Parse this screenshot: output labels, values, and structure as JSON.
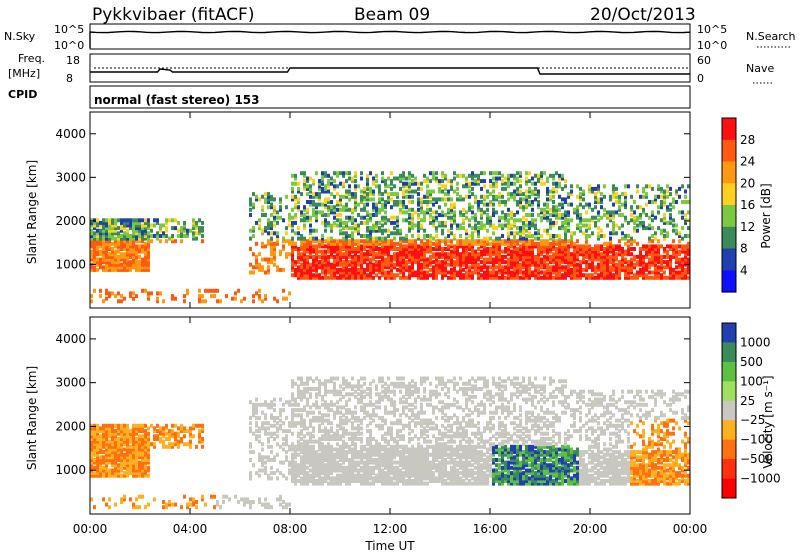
{
  "header": {
    "station": "Pykkvibaer (fitACF)",
    "beam": "Beam 09",
    "date": "20/Oct/2013"
  },
  "status_panels": {
    "nsky_label": "N.Sky",
    "nsky_ticks": [
      "10^5",
      "10^0"
    ],
    "nsearch_label": "N.Search",
    "nsearch_ticks": [
      "10^5",
      "10^0"
    ],
    "freq_label_1": "Freq.",
    "freq_label_2": "[MHz]",
    "freq_ticks": [
      "18",
      "8"
    ],
    "nave_label": "Nave",
    "nave_ticks": [
      "60",
      "0"
    ],
    "cpid_label": "CPID",
    "cpid_value": "normal (fast stereo) 153"
  },
  "chart_data": [
    {
      "type": "heatmap",
      "title": "",
      "ylabel": "Slant Range [km]",
      "xlabel": "",
      "y_ticks": [
        1000,
        2000,
        3000,
        4000
      ],
      "ylim": [
        0,
        4500
      ],
      "x_ticks": [
        "00:00",
        "04:00",
        "08:00",
        "12:00",
        "16:00",
        "20:00",
        "00:00"
      ],
      "xlim_hours": [
        0,
        24
      ],
      "colorbar": {
        "label": "Power [dB]",
        "ticks": [
          "28",
          "24",
          "20",
          "16",
          "12",
          "8",
          "4"
        ],
        "colors": [
          "#ff1010",
          "#ff5a10",
          "#ff9a10",
          "#ffd020",
          "#7cc840",
          "#3a8a5a",
          "#2040b0",
          "#1010ff"
        ]
      }
    },
    {
      "type": "heatmap",
      "title": "",
      "ylabel": "Slant Range [km]",
      "xlabel": "Time UT",
      "y_ticks": [
        1000,
        2000,
        3000,
        4000
      ],
      "ylim": [
        0,
        4500
      ],
      "x_ticks": [
        "00:00",
        "04:00",
        "08:00",
        "12:00",
        "16:00",
        "20:00",
        "00:00"
      ],
      "xlim_hours": [
        0,
        24
      ],
      "colorbar": {
        "label": "Velocity [m s⁻¹]",
        "ticks": [
          "1000",
          "500",
          "100",
          "25",
          "−25",
          "−100",
          "−500",
          "−1000"
        ],
        "colors": [
          "#2040b0",
          "#3a8a5a",
          "#5cc040",
          "#a0e060",
          "#c8c8c0",
          "#ffb020",
          "#ff7010",
          "#ff3010",
          "#ff0000"
        ]
      }
    }
  ]
}
